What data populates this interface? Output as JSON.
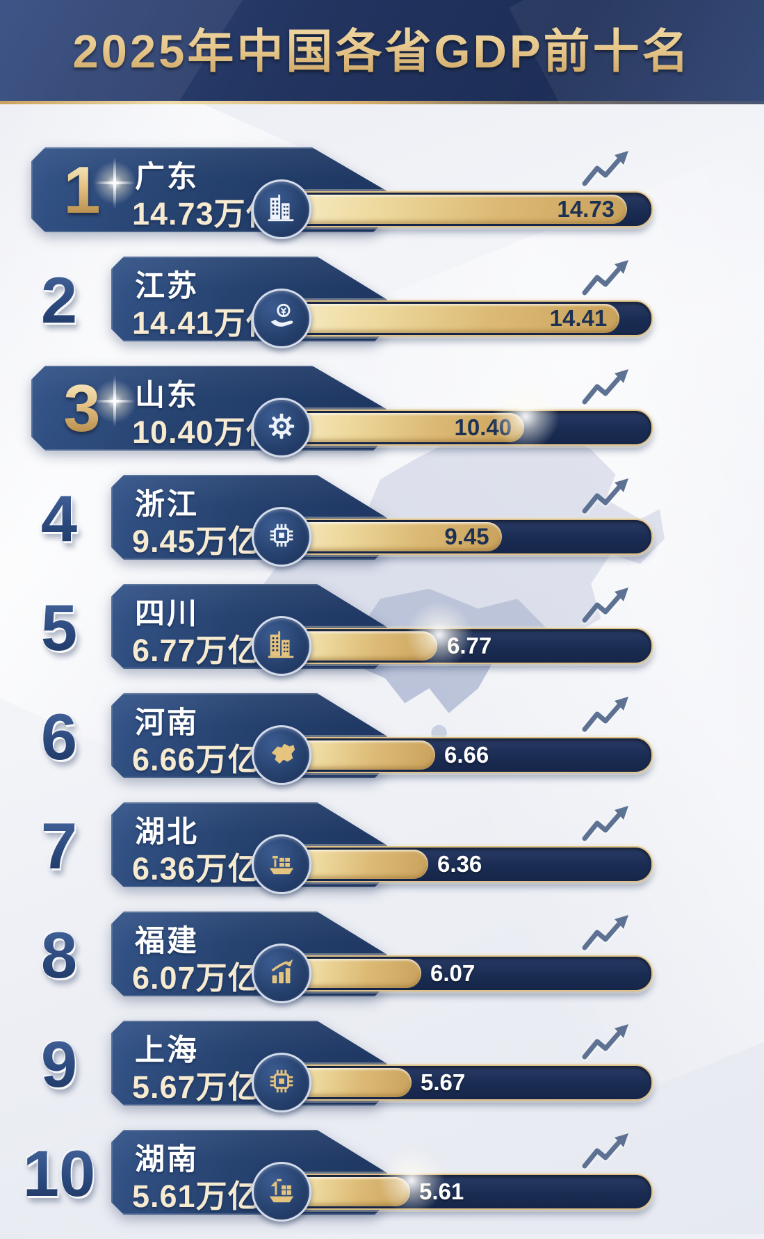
{
  "header": {
    "title": "2025年中国各省GDP前十名"
  },
  "chart_data": {
    "type": "bar",
    "orientation": "horizontal",
    "title": "2025年中国各省GDP前十名",
    "categories": [
      "广东",
      "江苏",
      "山东",
      "浙江",
      "四川",
      "河南",
      "湖北",
      "福建",
      "上海",
      "湖南"
    ],
    "values": [
      14.73,
      14.41,
      10.4,
      9.45,
      6.77,
      6.66,
      6.36,
      6.07,
      5.67,
      5.61
    ],
    "unit": "万亿",
    "xlim": [
      0,
      14.73
    ],
    "grid": false,
    "legend": false
  },
  "rows": [
    {
      "rank": "1",
      "province": "广东",
      "value_text": "14.73万亿",
      "bar_label": "14.73",
      "value": 14.73,
      "icon": "buildings-icon",
      "icon_color": "#eef3fb",
      "highlight": true,
      "label_inside": true,
      "flare": false
    },
    {
      "rank": "2",
      "province": "江苏",
      "value_text": "14.41万亿",
      "bar_label": "14.41",
      "value": 14.41,
      "icon": "coin-hand-icon",
      "icon_color": "#eef3fb",
      "highlight": false,
      "label_inside": true,
      "flare": false
    },
    {
      "rank": "3",
      "province": "山东",
      "value_text": "10.40万亿",
      "bar_label": "10.40",
      "value": 10.4,
      "icon": "gear-icon",
      "icon_color": "#eef3fb",
      "highlight": true,
      "label_inside": true,
      "flare": true
    },
    {
      "rank": "4",
      "province": "浙江",
      "value_text": "9.45万亿",
      "bar_label": "9.45",
      "value": 9.45,
      "icon": "chip-icon",
      "icon_color": "#eef3fb",
      "highlight": false,
      "label_inside": true,
      "flare": false
    },
    {
      "rank": "5",
      "province": "四川",
      "value_text": "6.77万亿",
      "bar_label": "6.77",
      "value": 6.77,
      "icon": "buildings-icon",
      "icon_color": "#e4c47f",
      "highlight": false,
      "label_inside": false,
      "flare": true
    },
    {
      "rank": "6",
      "province": "河南",
      "value_text": "6.66万亿",
      "bar_label": "6.66",
      "value": 6.66,
      "icon": "province-map-icon",
      "icon_color": "#e4c47f",
      "highlight": false,
      "label_inside": false,
      "flare": false
    },
    {
      "rank": "7",
      "province": "湖北",
      "value_text": "6.36万亿",
      "bar_label": "6.36",
      "value": 6.36,
      "icon": "cargo-ship-icon",
      "icon_color": "#e4c47f",
      "highlight": false,
      "label_inside": false,
      "flare": false
    },
    {
      "rank": "8",
      "province": "福建",
      "value_text": "6.07万亿",
      "bar_label": "6.07",
      "value": 6.07,
      "icon": "growth-chart-icon",
      "icon_color": "#e4c47f",
      "highlight": false,
      "label_inside": false,
      "flare": false
    },
    {
      "rank": "9",
      "province": "上海",
      "value_text": "5.67万亿",
      "bar_label": "5.67",
      "value": 5.67,
      "icon": "chip-icon",
      "icon_color": "#e4c47f",
      "highlight": false,
      "label_inside": false,
      "flare": false
    },
    {
      "rank": "10",
      "province": "湖南",
      "value_text": "5.61万亿",
      "bar_label": "5.61",
      "value": 5.61,
      "icon": "ship-icon",
      "icon_color": "#e4c47f",
      "highlight": false,
      "label_inside": false,
      "flare": true
    }
  ],
  "colors": {
    "header_navy": "#22345f",
    "card_navy": "#26426f",
    "bar_track_navy": "#1a2c52",
    "bar_gold": "#dcba75",
    "gold_border": "#dfc289",
    "title_gold": "#e7c88d",
    "rank_navy": "#2c4a7e",
    "value_cream": "#f6ead0",
    "trend_arrow_blue": "#5d7293",
    "label_dark": "#1d3154",
    "background_light": "#eff1f6"
  }
}
